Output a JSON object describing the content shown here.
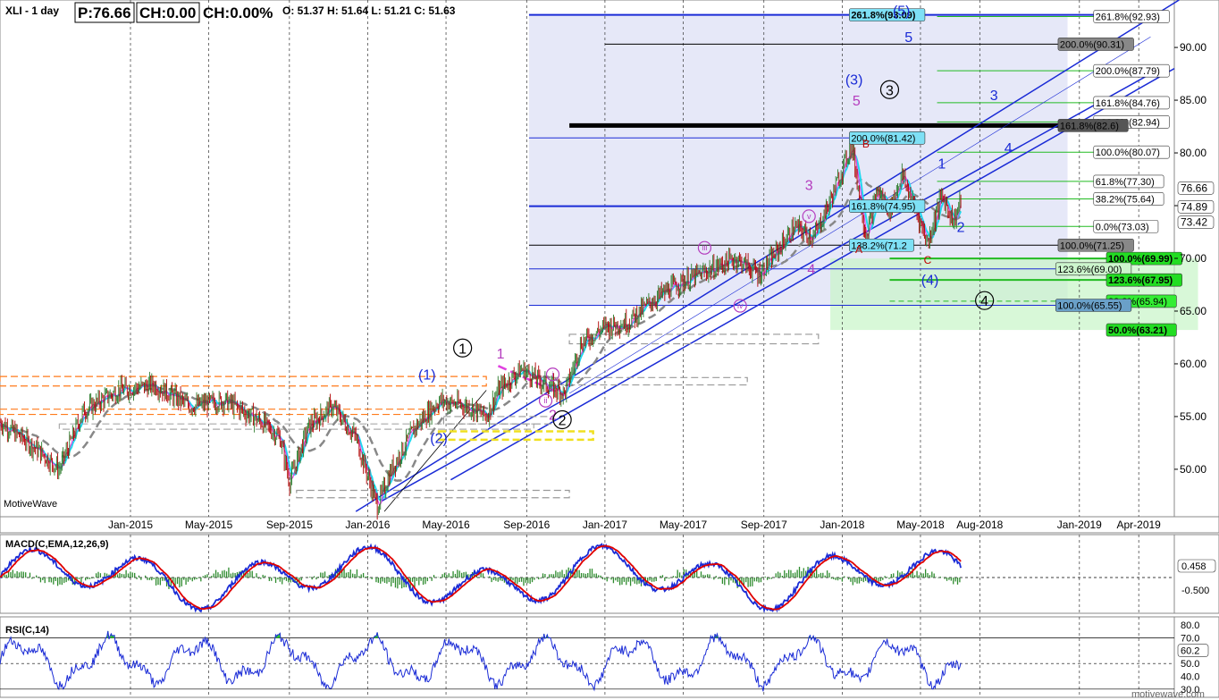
{
  "header": {
    "symbol": "XLI - 1 day",
    "price": "P:76.66",
    "change": "CH:0.00",
    "change_pct": "CH:0.00%",
    "ohlc": "O: 51.37  H: 51.64  L: 51.21  C: 51.63"
  },
  "watermark_left": "MotiveWave",
  "watermark_right": "motivewave.com",
  "chart_data": {
    "type": "candlestick",
    "price_axis_ticks": [
      50,
      55,
      60,
      65,
      70,
      75,
      80,
      85,
      90
    ],
    "price_axis_labels": [
      "50.00",
      "55.00",
      "60.00",
      "65.00",
      "70.00",
      "75.00",
      "80.00",
      "85.00",
      "90.00"
    ],
    "ylim": [
      45.5,
      94.5
    ],
    "date_labels": [
      "Jan-2015",
      "May-2015",
      "Sep-2015",
      "Jan-2016",
      "May-2016",
      "Sep-2016",
      "Jan-2017",
      "May-2017",
      "Sep-2017",
      "Jan-2018",
      "May-2018",
      "Aug-2018",
      "Jan-2019",
      "Apr-2019"
    ],
    "date_positions": [
      2015.0,
      2015.33,
      2015.67,
      2016.0,
      2016.33,
      2016.67,
      2017.0,
      2017.33,
      2017.67,
      2018.0,
      2018.33,
      2018.58,
      2019.0,
      2019.25
    ],
    "xlim": [
      2014.45,
      2019.4
    ],
    "price_path": [
      [
        2014.45,
        54.5
      ],
      [
        2014.6,
        52
      ],
      [
        2014.7,
        50
      ],
      [
        2014.8,
        55.5
      ],
      [
        2014.95,
        57.5
      ],
      [
        2015.1,
        58
      ],
      [
        2015.25,
        56
      ],
      [
        2015.4,
        56.5
      ],
      [
        2015.55,
        54.5
      ],
      [
        2015.63,
        53
      ],
      [
        2015.67,
        48.8
      ],
      [
        2015.75,
        54
      ],
      [
        2015.85,
        56
      ],
      [
        2015.95,
        53
      ],
      [
        2016.04,
        46.5
      ],
      [
        2016.1,
        50
      ],
      [
        2016.2,
        54
      ],
      [
        2016.3,
        56.5
      ],
      [
        2016.42,
        56
      ],
      [
        2016.5,
        55
      ],
      [
        2016.55,
        57.5
      ],
      [
        2016.65,
        59.5
      ],
      [
        2016.75,
        58
      ],
      [
        2016.83,
        57.2
      ],
      [
        2016.9,
        62
      ],
      [
        2017.0,
        63.5
      ],
      [
        2017.1,
        64
      ],
      [
        2017.2,
        66
      ],
      [
        2017.3,
        67.5
      ],
      [
        2017.45,
        69
      ],
      [
        2017.55,
        70
      ],
      [
        2017.65,
        68.5
      ],
      [
        2017.72,
        70.5
      ],
      [
        2017.8,
        73
      ],
      [
        2017.88,
        72
      ],
      [
        2017.95,
        75.5
      ],
      [
        2018.04,
        80.8
      ],
      [
        2018.1,
        72
      ],
      [
        2018.15,
        76.5
      ],
      [
        2018.2,
        74.5
      ],
      [
        2018.25,
        78
      ],
      [
        2018.32,
        74
      ],
      [
        2018.36,
        71.5
      ],
      [
        2018.42,
        76
      ],
      [
        2018.47,
        73.5
      ],
      [
        2018.5,
        75.5
      ]
    ],
    "current_price": 74.89,
    "price_axis_markers": [
      {
        "value": 76.66,
        "text": "76.66",
        "color": "#ffffff",
        "text_color": "#000000"
      },
      {
        "value": 74.89,
        "text": "74.89",
        "color": "#ffffff",
        "text_color": "#000000"
      },
      {
        "value": 73.42,
        "text": "73.42",
        "color": "#ffffff",
        "text_color": "#888888"
      }
    ],
    "fib_labels": [
      {
        "text": "261.8%(93.09)",
        "value": 93.09,
        "x": 2018.03,
        "bg": "#7ee0f5",
        "fg": "#000000",
        "bold": true
      },
      {
        "text": "261.8%(92.93)",
        "value": 92.93,
        "x": 2019.06,
        "bg": "#ffffff",
        "fg": "#000000",
        "bold": false
      },
      {
        "text": "200.0%(90.31)",
        "value": 90.31,
        "x": 2018.91,
        "bg": "#888888",
        "fg": "#000000",
        "bold": false
      },
      {
        "text": "200.0%(87.79)",
        "value": 87.79,
        "x": 2019.06,
        "bg": "#ffffff",
        "fg": "#000000",
        "bold": false
      },
      {
        "text": "161.8%(84.76)",
        "value": 84.76,
        "x": 2019.06,
        "bg": "#ffffff",
        "fg": "#000000",
        "bold": false
      },
      {
        "text": "138.2%(82.94)",
        "value": 82.94,
        "x": 2019.06,
        "bg": "#ffffff",
        "fg": "#000000",
        "bold": false
      },
      {
        "text": "161.8%(82.6)",
        "value": 82.6,
        "x": 2018.91,
        "bg": "#555555",
        "fg": "#000000",
        "bold": false
      },
      {
        "text": "200.0%(81.42)",
        "value": 81.42,
        "x": 2018.03,
        "bg": "#7ee0f5",
        "fg": "#000000",
        "bold": false
      },
      {
        "text": "100.0%(80.07)",
        "value": 80.07,
        "x": 2019.06,
        "bg": "#ffffff",
        "fg": "#000000",
        "bold": false
      },
      {
        "text": "61.8%(77.30)",
        "value": 77.3,
        "x": 2019.06,
        "bg": "#ffffff",
        "fg": "#000000",
        "bold": false
      },
      {
        "text": "38.2%(75.64)",
        "value": 75.64,
        "x": 2019.06,
        "bg": "#ffffff",
        "fg": "#000000",
        "bold": false
      },
      {
        "text": "161.8%(74.95)",
        "value": 74.95,
        "x": 2018.03,
        "bg": "#7ee0f5",
        "fg": "#000000",
        "bold": false
      },
      {
        "text": "0.0%(73.03)",
        "value": 73.03,
        "x": 2019.06,
        "bg": "#ffffff",
        "fg": "#000000",
        "bold": false
      },
      {
        "text": "138.2%(71.2",
        "value": 71.25,
        "x": 2018.03,
        "bg": "#7ee0f5",
        "fg": "#000000",
        "bold": false
      },
      {
        "text": "100.0%(71.25)",
        "value": 71.25,
        "x": 2018.91,
        "bg": "#888888",
        "fg": "#000000",
        "bold": false
      },
      {
        "text": "100.0%(69.99)",
        "value": 69.99,
        "x": 2019.5,
        "bg": "#22dd22",
        "fg": "#0000aa",
        "bold": true
      },
      {
        "text": "123.6%(69.00)",
        "value": 69.0,
        "x": 2018.9,
        "bg": "#ccf5cc",
        "fg": "#000000",
        "bold": false
      },
      {
        "text": "123.6%(67.95)",
        "value": 67.95,
        "x": 2019.5,
        "bg": "#22dd22",
        "fg": "#0000aa",
        "bold": true
      },
      {
        "text": "38.2%(65.94)",
        "value": 65.94,
        "x": 2019.5,
        "bg": "#33ee33",
        "fg": "#000000",
        "bold": false
      },
      {
        "text": "100.0%(65.55)",
        "value": 65.55,
        "x": 2018.9,
        "bg": "#6aa0c8",
        "fg": "#000000",
        "bold": false
      },
      {
        "text": "50.0%(63.21)",
        "value": 63.21,
        "x": 2019.5,
        "bg": "#22dd22",
        "fg": "#000000",
        "bold": true
      }
    ],
    "wave_labels": [
      {
        "text": "(5)",
        "x": 2018.25,
        "y": 93.0,
        "style": "blue"
      },
      {
        "text": "5",
        "x": 2018.28,
        "y": 90.5,
        "style": "blue-small"
      },
      {
        "text": "(3)",
        "x": 2018.05,
        "y": 86.5,
        "style": "blue"
      },
      {
        "text": "5",
        "x": 2018.06,
        "y": 84.5,
        "style": "mag"
      },
      {
        "text": "3",
        "x": 2018.2,
        "y": 86.0,
        "style": "circle"
      },
      {
        "text": "3",
        "x": 2018.64,
        "y": 85.0,
        "style": "blue-small"
      },
      {
        "text": "4",
        "x": 2018.7,
        "y": 80.0,
        "style": "blue-small"
      },
      {
        "text": "1",
        "x": 2018.42,
        "y": 78.5,
        "style": "blue-small"
      },
      {
        "text": "B",
        "x": 2018.1,
        "y": 80.5,
        "style": "red"
      },
      {
        "text": "A",
        "x": 2018.07,
        "y": 70.5,
        "style": "red"
      },
      {
        "text": "C",
        "x": 2018.36,
        "y": 69.5,
        "style": "red"
      },
      {
        "text": "2",
        "x": 2018.5,
        "y": 72.5,
        "style": "blue-small"
      },
      {
        "text": "(4)",
        "x": 2018.37,
        "y": 67.5,
        "style": "blue"
      },
      {
        "text": "4",
        "x": 2018.6,
        "y": 66.0,
        "style": "circle"
      },
      {
        "text": "3",
        "x": 2017.86,
        "y": 76.5,
        "style": "mag"
      },
      {
        "text": "4",
        "x": 2017.87,
        "y": 68.5,
        "style": "mag"
      },
      {
        "text": "v",
        "x": 2017.86,
        "y": 74.0,
        "style": "mag-circle"
      },
      {
        "text": "iii",
        "x": 2017.42,
        "y": 71.0,
        "style": "mag-circle"
      },
      {
        "text": "iv",
        "x": 2017.57,
        "y": 65.5,
        "style": "mag-circle"
      },
      {
        "text": "1",
        "x": 2016.4,
        "y": 61.5,
        "style": "circle"
      },
      {
        "text": "1",
        "x": 2016.56,
        "y": 60.5,
        "style": "mag"
      },
      {
        "text": "(1)",
        "x": 2016.25,
        "y": 58.5,
        "style": "blue"
      },
      {
        "text": "i",
        "x": 2016.78,
        "y": 59.0,
        "style": "mag-circle"
      },
      {
        "text": "ii",
        "x": 2016.75,
        "y": 56.5,
        "style": "mag-circle"
      },
      {
        "text": "2",
        "x": 2016.78,
        "y": 54.7,
        "style": "mag"
      },
      {
        "text": "2",
        "x": 2016.82,
        "y": 54.7,
        "style": "circle"
      },
      {
        "text": "(2)",
        "x": 2016.3,
        "y": 52.5,
        "style": "blue"
      }
    ],
    "macd": {
      "title": "MACD(C,EMA,12,26,9)",
      "ticks": [
        "0.458",
        "-0.500"
      ],
      "current_value": 0.458,
      "zero_label": "-0.500"
    },
    "rsi": {
      "title": "RSI(C,14)",
      "ticks": [
        "80.0",
        "70.0",
        "60.2",
        "50.0",
        "40.0",
        "30.0"
      ],
      "levels": [
        80,
        70,
        60.2,
        50,
        40,
        30
      ],
      "current_value": 60.2
    }
  },
  "colors": {
    "candle_up": "#2a7a2a",
    "candle_down": "#b00000",
    "ma_fast": "#e040e0",
    "ma_mid": "#20d8f0",
    "ma_slow": "#888888",
    "channel": "#1a2bd6",
    "fib_green": "#22bb22",
    "zone_blue": "#c8cdf0",
    "zone_green": "#c8f5c8"
  }
}
